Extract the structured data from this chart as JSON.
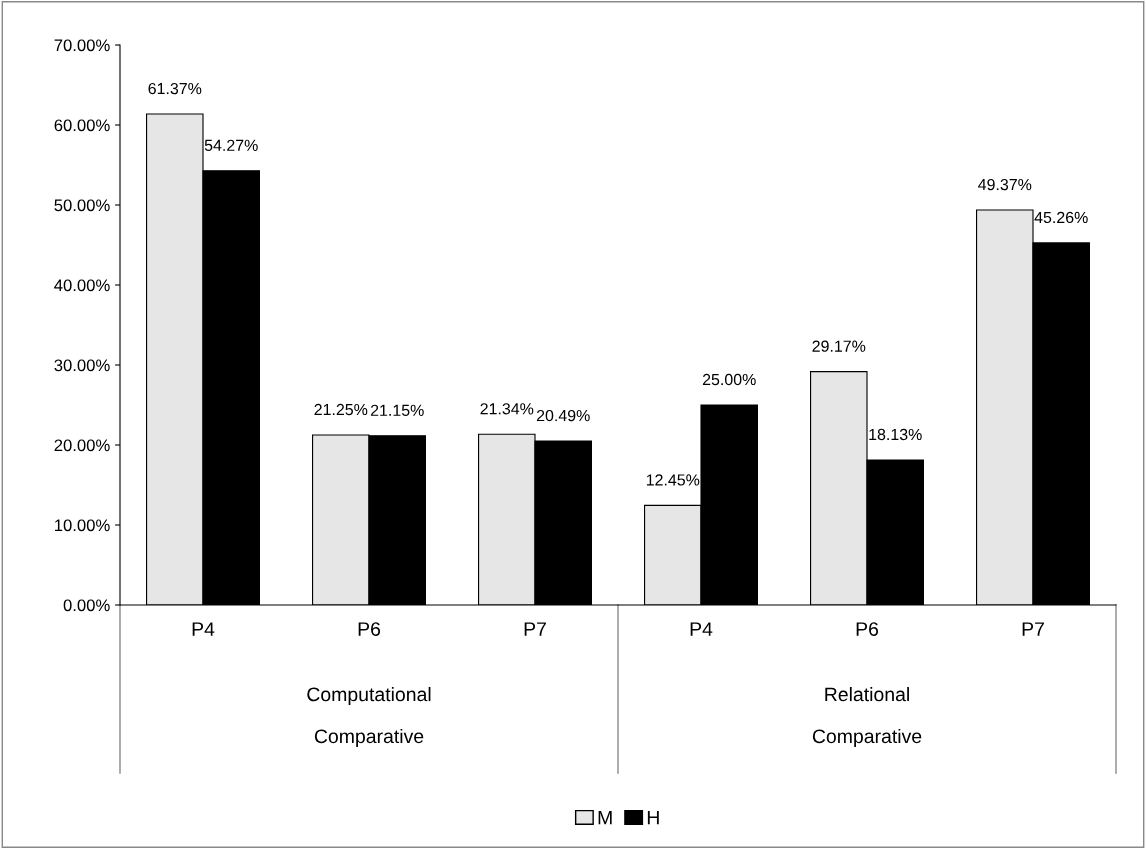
{
  "chart_data": {
    "type": "bar",
    "categories": [
      "P4",
      "P6",
      "P7",
      "P4",
      "P6",
      "P7"
    ],
    "series": [
      {
        "name": "M",
        "color": "#e6e6e6",
        "values": [
          61.37,
          21.25,
          21.34,
          12.45,
          29.17,
          49.37
        ],
        "value_labels": [
          "61.37%",
          "21.25%",
          "21.34%",
          "12.45%",
          "29.17%",
          "49.37%"
        ]
      },
      {
        "name": "H",
        "color": "#000000",
        "values": [
          54.27,
          21.15,
          20.49,
          25.0,
          18.13,
          45.26
        ],
        "value_labels": [
          "54.27%",
          "21.15%",
          "20.49%",
          "25.00%",
          "18.13%",
          "45.26%"
        ]
      }
    ],
    "annotations": [
      "Computational\n\nComparative",
      "Relational\n\nComparative"
    ],
    "ylim": [
      0,
      70
    ],
    "yticks": [
      {
        "value": 0,
        "label": "0.00%"
      },
      {
        "value": 10,
        "label": "10.00%"
      },
      {
        "value": 20,
        "label": "20.00%"
      },
      {
        "value": 30,
        "label": "30.00%"
      },
      {
        "value": 40,
        "label": "40.00%"
      },
      {
        "value": 50,
        "label": "50.00%"
      },
      {
        "value": 60,
        "label": "60.00%"
      },
      {
        "value": 70,
        "label": "70.00%"
      }
    ],
    "grid": false,
    "legend": "bottom"
  }
}
